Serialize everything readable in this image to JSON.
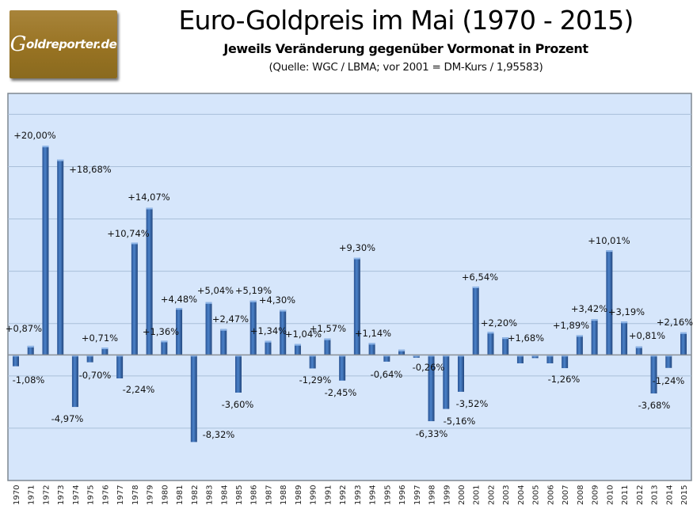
{
  "logo": {
    "text": "Goldreporter.de",
    "color": "#9a7626"
  },
  "header": {
    "title": "Euro-Goldpreis im Mai (1970 - 2015)",
    "subtitle": "Jeweils Veränderung gegenüber Vormonat in Prozent",
    "source": "(Quelle: WGC / LBMA; vor 2001 = DM-Kurs / 1,95583)"
  },
  "chart_data": {
    "type": "bar",
    "title": "Euro-Goldpreis im Mai (1970 - 2015)",
    "subtitle": "Jeweils Veränderung gegenüber Vormonat in Prozent",
    "xlabel": "",
    "ylabel": "",
    "ylim": [
      -12,
      25
    ],
    "grid": true,
    "grid_step": 5,
    "legend": "none",
    "bar_color": "#3a6db3",
    "plot_background": "#d6e6fb",
    "categories": [
      "1970",
      "1971",
      "1972",
      "1973",
      "1974",
      "1975",
      "1976",
      "1977",
      "1978",
      "1979",
      "1980",
      "1981",
      "1982",
      "1983",
      "1984",
      "1985",
      "1986",
      "1987",
      "1988",
      "1989",
      "1990",
      "1991",
      "1992",
      "1993",
      "1994",
      "1995",
      "1996",
      "1997",
      "1998",
      "1999",
      "2000",
      "2001",
      "2002",
      "2003",
      "2004",
      "2005",
      "2006",
      "2007",
      "2008",
      "2009",
      "2010",
      "2011",
      "2012",
      "2013",
      "2014",
      "2015"
    ],
    "values": [
      -1.08,
      0.87,
      20.0,
      18.68,
      -4.97,
      -0.7,
      0.71,
      -2.24,
      10.74,
      14.07,
      1.36,
      4.48,
      -8.32,
      5.04,
      2.47,
      -3.6,
      5.19,
      1.34,
      4.3,
      1.04,
      -1.29,
      1.57,
      -2.45,
      9.3,
      1.14,
      -0.64,
      0.5,
      -0.26,
      -6.33,
      -5.16,
      -3.52,
      6.54,
      2.2,
      1.68,
      -0.8,
      -0.3,
      -0.8,
      -1.26,
      1.89,
      3.42,
      10.01,
      3.19,
      0.81,
      -3.68,
      -1.24,
      2.16
    ],
    "data_labels": [
      "-1,08%",
      "+0,87%",
      "+20,00%",
      "+18,68%",
      "-4,97%",
      "-0,70%",
      "+0,71%",
      "-2,24%",
      "+10,74%",
      "+14,07%",
      "+1,36%",
      "+4,48%",
      "-8,32%",
      "+5,04%",
      "+2,47%",
      "-3,60%",
      "+5,19%",
      "+1,34%",
      "+4,30%",
      "+1,04%",
      "-1,29%",
      "+1,57%",
      "-2,45%",
      "+9,30%",
      "+1,14%",
      "-0,64%",
      "",
      "-0,26%",
      "-6,33%",
      "-5,16%",
      "-3,52%",
      "+6,54%",
      "+2,20%",
      "+1,68%",
      "",
      "",
      "",
      "-1,26%",
      "+1,89%",
      "+3,42%",
      "+10,01%",
      "+3,19%",
      "+0,81%",
      "-3,68%",
      "-1,24%",
      "+2,16%"
    ]
  }
}
